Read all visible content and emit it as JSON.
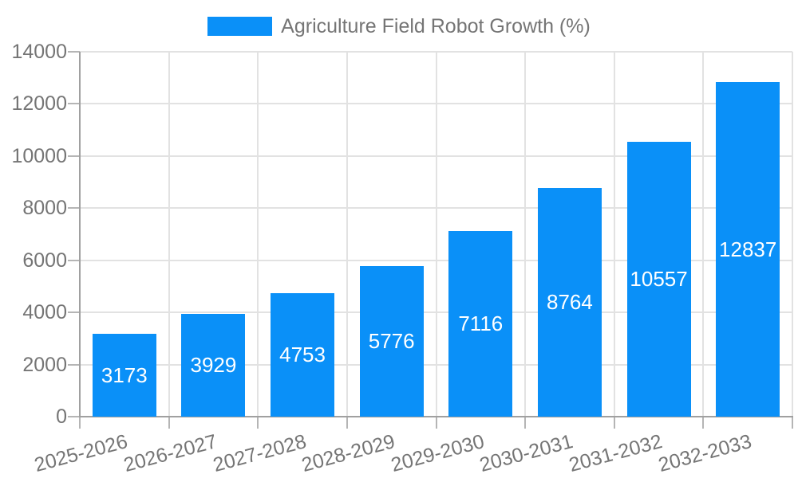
{
  "chart_data": {
    "type": "bar",
    "title": "Agriculture Field Robot Growth (%)",
    "categories": [
      "2025-2026",
      "2026-2027",
      "2027-2028",
      "2028-2029",
      "2029-2030",
      "2030-2031",
      "2031-2032",
      "2032-2033"
    ],
    "series": [
      {
        "name": "Agriculture Field Robot Growth (%)",
        "values": [
          3173,
          3929,
          4753,
          5776,
          7116,
          8764,
          10557,
          12837
        ]
      }
    ],
    "xlabel": "",
    "ylabel": "",
    "ylim": [
      0,
      14000
    ],
    "yticks": [
      0,
      2000,
      4000,
      6000,
      8000,
      10000,
      12000,
      14000
    ],
    "grid": true,
    "legend_position": "top-center",
    "value_labels_inside_bars": true,
    "x_tick_label_rotation_deg": -15,
    "colors": {
      "bar": "#0A90F8",
      "tick_label": "#757575",
      "bar_label": "#FFFFFF",
      "grid": "#E2E2E2",
      "tick": "#B5B5B5",
      "axis": "#A0A0A0",
      "background": "#FFFFFF"
    }
  }
}
